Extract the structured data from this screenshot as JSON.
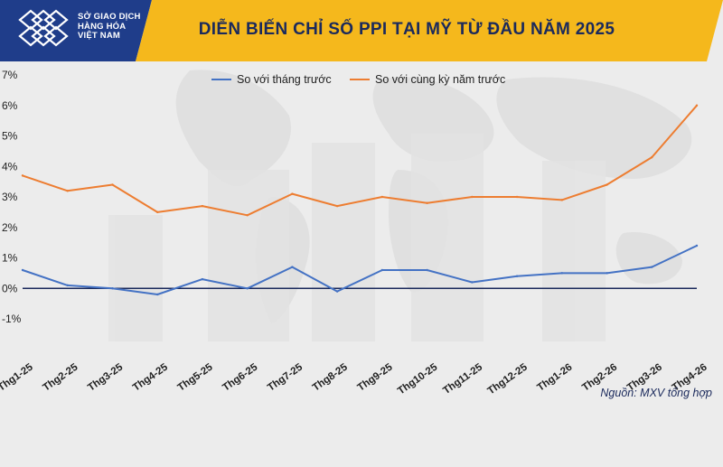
{
  "header": {
    "logo_lines": [
      "SỞ GIAO DỊCH",
      "HÀNG HÓA",
      "VIỆT NAM"
    ],
    "title": "DIỄN BIẾN CHỈ SỐ PPI TẠI MỸ TỪ ĐẦU NĂM 2025"
  },
  "footer": {
    "source": "Nguồn: MXV tổng hợp"
  },
  "colors": {
    "header_yellow": "#f5b81c",
    "logo_blue": "#1f3d8a",
    "mom_line": "#4472c4",
    "yoy_line": "#ed7d31",
    "title_text": "#1b2a5c"
  },
  "chart_data": {
    "type": "line",
    "categories": [
      "Thg1-25",
      "Thg2-25",
      "Thg3-25",
      "Thg4-25",
      "Thg5-25",
      "Thg6-25",
      "Thg7-25",
      "Thg8-25",
      "Thg9-25",
      "Thg10-25",
      "Thg11-25",
      "Thg12-25",
      "Thg1-26",
      "Thg2-26",
      "Thg3-26",
      "Thg4-26"
    ],
    "series": [
      {
        "name": "So với tháng trước",
        "values": [
          0.6,
          0.1,
          0.0,
          -0.2,
          0.3,
          0.0,
          0.7,
          -0.1,
          0.6,
          0.6,
          0.2,
          0.4,
          0.5,
          0.5,
          0.7,
          1.4
        ]
      },
      {
        "name": "So với cùng kỳ năm trước",
        "values": [
          3.7,
          3.2,
          3.4,
          2.5,
          2.7,
          2.4,
          3.1,
          2.7,
          3.0,
          2.8,
          3.0,
          3.0,
          2.9,
          3.4,
          4.3,
          6.0
        ]
      }
    ],
    "y_ticks": [
      "-1%",
      "0%",
      "1%",
      "2%",
      "3%",
      "4%",
      "5%",
      "6%",
      "7%"
    ],
    "ylim": [
      -1,
      7
    ],
    "y_unit": "%",
    "legend_position": "top-center",
    "grid": false
  }
}
